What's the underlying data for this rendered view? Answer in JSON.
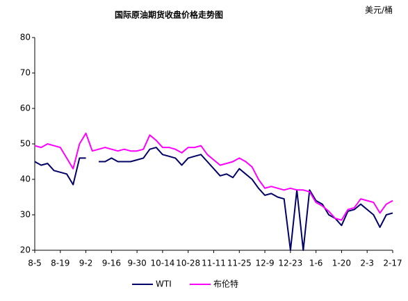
{
  "chart_data": {
    "type": "line",
    "title": "国际原油期货收盘价格走势图",
    "y_unit": "美元/桶",
    "categories": [
      "8-5",
      null,
      null,
      null,
      "8-19",
      null,
      null,
      null,
      "9-2",
      null,
      null,
      null,
      "9-16",
      null,
      null,
      null,
      "9-30",
      null,
      null,
      null,
      "10-14",
      null,
      null,
      null,
      "10-28",
      null,
      null,
      null,
      "11-11",
      null,
      null,
      null,
      "11-25",
      null,
      null,
      null,
      "12-9",
      null,
      null,
      null,
      "12-23",
      null,
      null,
      null,
      "1-6",
      null,
      null,
      null,
      "1-20",
      null,
      null,
      null,
      "2-3",
      null,
      null,
      null,
      "2-17"
    ],
    "series": [
      {
        "name": "WTI",
        "color": "#000066",
        "values": [
          45,
          44,
          44.5,
          42.5,
          42,
          41.5,
          38.5,
          46,
          46,
          null,
          45,
          45,
          46,
          45,
          45,
          45,
          45.5,
          46,
          48.5,
          49,
          47,
          46.5,
          46,
          44,
          46,
          46.5,
          47,
          45,
          43,
          41,
          41.5,
          40.5,
          43,
          41.5,
          40,
          37.5,
          35.5,
          36,
          35,
          34.5,
          20,
          37,
          20,
          37,
          34,
          33,
          30,
          29,
          27,
          31,
          31.5,
          33,
          31.5,
          30,
          26.5,
          30,
          30.5
        ]
      },
      {
        "name": "布伦特",
        "color": "#ff00ff",
        "values": [
          49.5,
          49,
          50,
          49.5,
          49,
          46,
          43,
          50,
          53,
          48,
          48.5,
          49,
          48.5,
          48,
          48.5,
          48,
          48,
          48.5,
          52.5,
          51,
          49,
          49,
          48.5,
          47.5,
          49,
          49,
          49.5,
          47,
          45.5,
          44,
          44.5,
          45,
          46,
          45,
          43.5,
          40,
          37.5,
          38,
          37.5,
          37,
          37.5,
          37,
          37,
          36.5,
          33.5,
          32.5,
          31,
          29,
          28.5,
          31.5,
          32,
          34.5,
          34,
          33.5,
          30.5,
          33,
          34
        ]
      }
    ],
    "ylim": [
      20,
      80
    ],
    "yticks": [
      20,
      30,
      40,
      50,
      60,
      70,
      80
    ],
    "grid": false
  }
}
